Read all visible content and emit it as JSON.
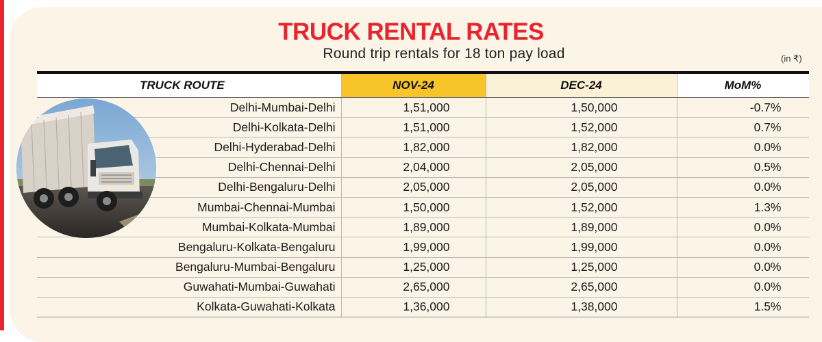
{
  "title": "TRUCK RENTAL RATES",
  "subtitle": "Round trip rentals for 18 ton pay load",
  "unit_note": "(in ₹)",
  "colors": {
    "accent_red": "#e8242d",
    "nov_header": "#f7c42a",
    "dec_header": "#fbf1d6",
    "panel": "#fbf4e7"
  },
  "table": {
    "headers": {
      "route": "TRUCK ROUTE",
      "nov": "NOV-24",
      "dec": "DEC-24",
      "mom": "MoM%"
    },
    "rows": [
      {
        "route": "Delhi-Mumbai-Delhi",
        "nov": "1,51,000",
        "dec": "1,50,000",
        "mom": "-0.7%"
      },
      {
        "route": "Delhi-Kolkata-Delhi",
        "nov": "1,51,000",
        "dec": "1,52,000",
        "mom": "0.7%"
      },
      {
        "route": "Delhi-Hyderabad-Delhi",
        "nov": "1,82,000",
        "dec": "1,82,000",
        "mom": "0.0%"
      },
      {
        "route": "Delhi-Chennai-Delhi",
        "nov": "2,04,000",
        "dec": "2,05,000",
        "mom": "0.5%"
      },
      {
        "route": "Delhi-Bengaluru-Delhi",
        "nov": "2,05,000",
        "dec": "2,05,000",
        "mom": "0.0%"
      },
      {
        "route": "Mumbai-Chennai-Mumbai",
        "nov": "1,50,000",
        "dec": "1,52,000",
        "mom": "1.3%"
      },
      {
        "route": "Mumbai-Kolkata-Mumbai",
        "nov": "1,89,000",
        "dec": "1,89,000",
        "mom": "0.0%"
      },
      {
        "route": "Bengaluru-Kolkata-Bengaluru",
        "nov": "1,99,000",
        "dec": "1,99,000",
        "mom": "0.0%"
      },
      {
        "route": "Bengaluru-Mumbai-Bengaluru",
        "nov": "1,25,000",
        "dec": "1,25,000",
        "mom": "0.0%"
      },
      {
        "route": "Guwahati-Mumbai-Guwahati",
        "nov": "2,65,000",
        "dec": "2,65,000",
        "mom": "0.0%"
      },
      {
        "route": "Kolkata-Guwahati-Kolkata",
        "nov": "1,36,000",
        "dec": "1,38,000",
        "mom": "1.5%"
      }
    ]
  }
}
